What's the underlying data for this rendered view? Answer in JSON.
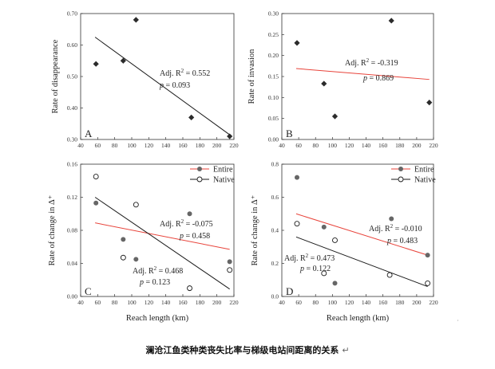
{
  "caption": "澜沧江鱼类种类丧失比率与梯级电站间距离的关系",
  "caption_mark": "↵",
  "stray_mark": "˙",
  "chart_data": [
    {
      "type": "scatter",
      "panel": "A",
      "xlabel": "",
      "ylabel": "Rate of disappearance",
      "xlim": [
        40,
        220
      ],
      "ylim": [
        0.3,
        0.7
      ],
      "xticks": [
        40,
        60,
        80,
        100,
        120,
        140,
        160,
        180,
        200,
        220
      ],
      "yticks": [
        0.3,
        0.4,
        0.5,
        0.6,
        0.7
      ],
      "legend": null,
      "series": [
        {
          "marker": "diamond",
          "color": "#2b2b2b",
          "fit_color": "#1a1a1a",
          "points": [
            [
              58,
              0.54
            ],
            [
              90,
              0.55
            ],
            [
              105,
              0.68
            ],
            [
              170,
              0.37
            ],
            [
              215,
              0.31
            ]
          ],
          "fit": [
            [
              57,
              0.625
            ],
            [
              215,
              0.315
            ]
          ],
          "annotation": {
            "adj_label": "Adj. R",
            "sup": "2",
            "adj_value": " = 0.552",
            "p_label": "p",
            "p_value": " = 0.093"
          }
        }
      ]
    },
    {
      "type": "scatter",
      "panel": "B",
      "xlabel": "",
      "ylabel": "Rate of invasion",
      "xlim": [
        40,
        220
      ],
      "ylim": [
        0.0,
        0.3
      ],
      "xticks": [
        40,
        60,
        80,
        100,
        120,
        140,
        160,
        180,
        200,
        220
      ],
      "yticks": [
        0.0,
        0.05,
        0.1,
        0.15,
        0.2,
        0.25,
        0.3
      ],
      "legend": null,
      "series": [
        {
          "marker": "diamond",
          "color": "#2b2b2b",
          "fit_color": "#e8433a",
          "points": [
            [
              58,
              0.23
            ],
            [
              90,
              0.133
            ],
            [
              103,
              0.055
            ],
            [
              170,
              0.283
            ],
            [
              215,
              0.088
            ]
          ],
          "fit": [
            [
              57,
              0.169
            ],
            [
              215,
              0.143
            ]
          ],
          "annotation": {
            "adj_label": "Adj. R",
            "sup": "2",
            "adj_value": " = -0.319",
            "p_label": "p",
            "p_value": " = 0.869"
          }
        }
      ]
    },
    {
      "type": "scatter",
      "panel": "C",
      "xlabel": "Reach length (km)",
      "ylabel": "Rate of change in Δ⁺",
      "xlim": [
        40,
        220
      ],
      "ylim": [
        0.0,
        0.16
      ],
      "xticks": [
        40,
        60,
        80,
        100,
        120,
        140,
        160,
        180,
        200,
        220
      ],
      "yticks": [
        0.0,
        0.04,
        0.08,
        0.12,
        0.16
      ],
      "legend": {
        "position": "top-right",
        "items": [
          "Entire",
          "Native"
        ]
      },
      "series": [
        {
          "name": "Entire",
          "marker": "filled-circle",
          "color": "#666666",
          "fit_color": "#e8433a",
          "points": [
            [
              58,
              0.113
            ],
            [
              90,
              0.069
            ],
            [
              105,
              0.045
            ],
            [
              168,
              0.1
            ],
            [
              215,
              0.042
            ]
          ],
          "fit": [
            [
              57,
              0.089
            ],
            [
              215,
              0.057
            ]
          ],
          "annotation": {
            "adj_label": "Adj. R",
            "sup": "2",
            "adj_value": " = -0.075",
            "p_label": "p",
            "p_value": " = 0.458"
          }
        },
        {
          "name": "Native",
          "marker": "open-circle",
          "color": "#1a1a1a",
          "fit_color": "#1a1a1a",
          "points": [
            [
              58,
              0.145
            ],
            [
              90,
              0.047
            ],
            [
              105,
              0.111
            ],
            [
              168,
              0.01
            ],
            [
              215,
              0.032
            ]
          ],
          "fit": [
            [
              57,
              0.12
            ],
            [
              215,
              0.009
            ]
          ],
          "annotation": {
            "adj_label": "Adj. R",
            "sup": "2",
            "adj_value": " = 0.468",
            "p_label": "p",
            "p_value": " = 0.123"
          }
        }
      ]
    },
    {
      "type": "scatter",
      "panel": "D",
      "xlabel": "Reach length (km)",
      "ylabel": "Rate of change in Δ⁺",
      "xlim": [
        40,
        220
      ],
      "ylim": [
        0.0,
        0.8
      ],
      "xticks": [
        40,
        60,
        80,
        100,
        120,
        140,
        160,
        180,
        200,
        220
      ],
      "yticks": [
        0.0,
        0.2,
        0.4,
        0.6,
        0.8
      ],
      "legend": {
        "position": "top-right",
        "items": [
          "Entire",
          "Native"
        ]
      },
      "series": [
        {
          "name": "Entire",
          "marker": "filled-circle",
          "color": "#666666",
          "fit_color": "#e8433a",
          "points": [
            [
              58,
              0.72
            ],
            [
              90,
              0.42
            ],
            [
              103,
              0.08
            ],
            [
              170,
              0.47
            ],
            [
              213,
              0.25
            ]
          ],
          "fit": [
            [
              57,
              0.5
            ],
            [
              213,
              0.25
            ]
          ],
          "annotation": {
            "adj_label": "Adj. R",
            "sup": "2",
            "adj_value": " = -0.010",
            "p_label": "p",
            "p_value": " = 0.483"
          }
        },
        {
          "name": "Native",
          "marker": "open-circle",
          "color": "#1a1a1a",
          "fit_color": "#1a1a1a",
          "points": [
            [
              58,
              0.44
            ],
            [
              90,
              0.14
            ],
            [
              103,
              0.34
            ],
            [
              168,
              0.13
            ],
            [
              213,
              0.08
            ]
          ],
          "fit": [
            [
              57,
              0.36
            ],
            [
              213,
              0.06
            ]
          ],
          "annotation": {
            "adj_label": "Adj. R",
            "sup": "2",
            "adj_value": " = 0.473",
            "p_label": "p",
            "p_value": " = 0.122"
          }
        }
      ]
    }
  ]
}
